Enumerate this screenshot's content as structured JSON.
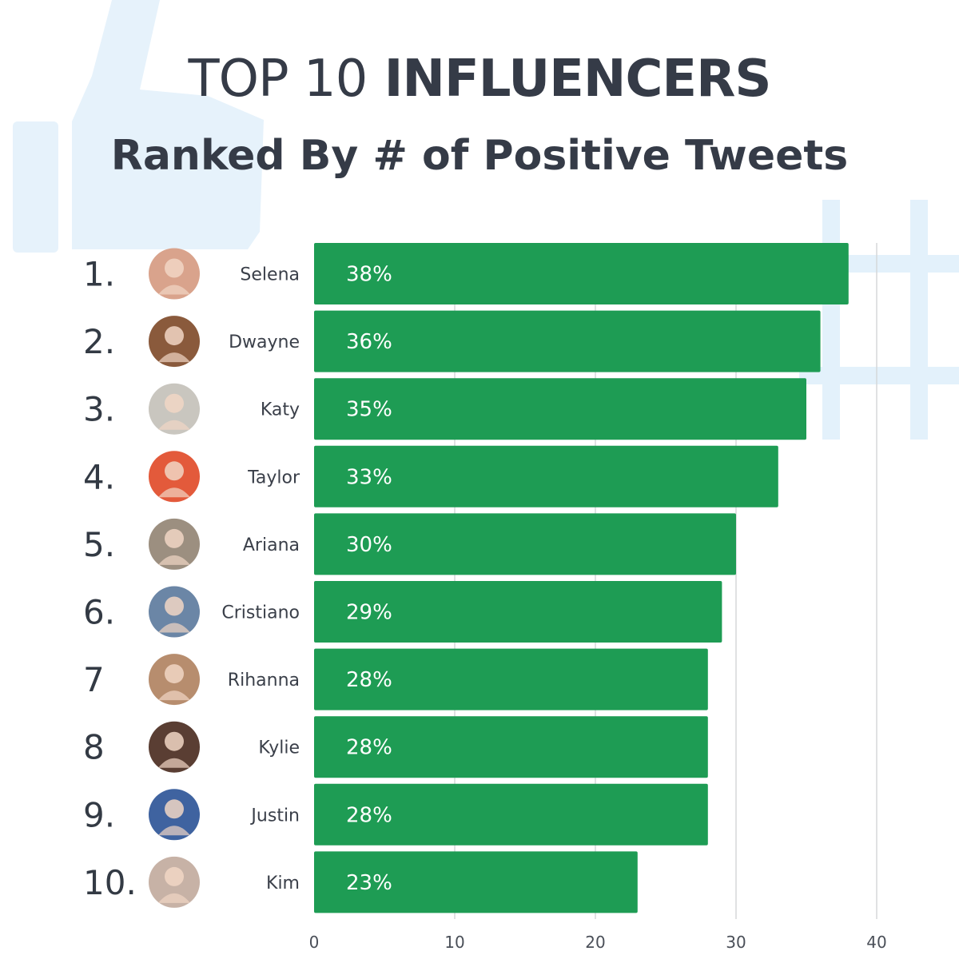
{
  "header": {
    "title_light": "TOP 10",
    "title_bold": "INFLUENCERS",
    "subtitle": "Ranked By # of Positive Tweets"
  },
  "chart_data": {
    "type": "bar",
    "orientation": "horizontal",
    "title": "TOP 10 INFLUENCERS",
    "subtitle": "Ranked By # of Positive Tweets",
    "xlabel": "",
    "ylabel": "",
    "xlim": [
      0,
      40
    ],
    "xticks": [
      0,
      10,
      20,
      30,
      40
    ],
    "grid": "vertical lines at ticks",
    "bar_color": "#1e9c54",
    "rows": [
      {
        "rank": "1.",
        "name": "Selena",
        "value": 38,
        "label": "38%"
      },
      {
        "rank": "2.",
        "name": "Dwayne",
        "value": 36,
        "label": "36%"
      },
      {
        "rank": "3.",
        "name": "Katy",
        "value": 35,
        "label": "35%"
      },
      {
        "rank": "4.",
        "name": "Taylor",
        "value": 33,
        "label": "33%"
      },
      {
        "rank": "5.",
        "name": "Ariana",
        "value": 30,
        "label": "30%"
      },
      {
        "rank": "6.",
        "name": "Cristiano",
        "value": 29,
        "label": "29%"
      },
      {
        "rank": "7",
        "name": "Rihanna",
        "value": 28,
        "label": "28%"
      },
      {
        "rank": "8",
        "name": "Kylie",
        "value": 28,
        "label": "28%"
      },
      {
        "rank": "9.",
        "name": "Justin",
        "value": 28,
        "label": "28%"
      },
      {
        "rank": "10.",
        "name": "Kim",
        "value": 23,
        "label": "23%"
      }
    ]
  },
  "colors": {
    "background": "#ffffff",
    "title": "#353b47",
    "bar": "#1e9c54",
    "decoration": "#e3f1fb",
    "grid": "#d5d7da"
  },
  "decorations": [
    "thumbs-up-icon",
    "hashtag-icon"
  ]
}
